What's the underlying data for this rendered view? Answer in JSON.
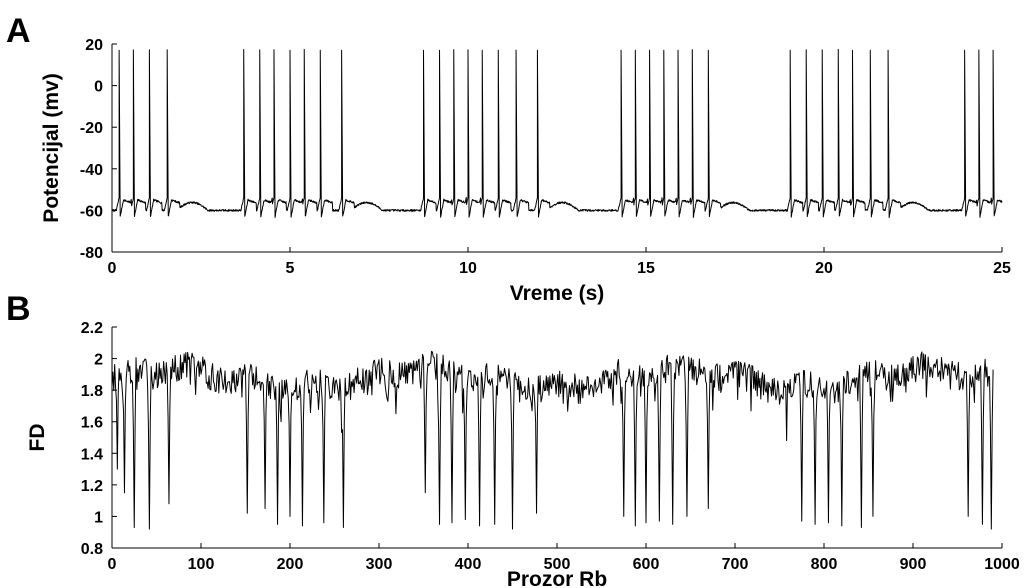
{
  "chart_data": [
    {
      "panel_label": "A",
      "type": "line",
      "xlabel": "Vreme (s)",
      "ylabel": "Potencijal (mv)",
      "xlim": [
        0,
        25
      ],
      "ylim": [
        -80,
        20
      ],
      "xticks": [
        0,
        5,
        10,
        15,
        20,
        25
      ],
      "yticks": [
        20,
        0,
        -20,
        -40,
        -60,
        -80
      ],
      "grid": false,
      "legend": "none",
      "trace_color": "#000000",
      "resting_potential_mv": -60,
      "spike_peak_mv": 17,
      "burst_period_s": 5.35,
      "bursts": [
        {
          "spike_times_s": [
            0.2,
            0.6,
            1.05,
            1.55
          ]
        },
        {
          "spike_times_s": [
            3.7,
            4.15,
            4.55,
            5.0,
            5.4,
            5.85,
            6.45
          ]
        },
        {
          "spike_times_s": [
            8.75,
            9.2,
            9.6,
            10.0,
            10.4,
            10.85,
            11.35,
            11.95
          ]
        },
        {
          "spike_times_s": [
            14.3,
            14.7,
            15.1,
            15.5,
            15.9,
            16.3,
            16.75
          ]
        },
        {
          "spike_times_s": [
            19.05,
            19.5,
            19.95,
            20.4,
            20.8,
            21.3,
            21.8
          ]
        },
        {
          "spike_times_s": [
            23.95,
            24.35,
            24.75
          ]
        }
      ]
    },
    {
      "panel_label": "B",
      "type": "line",
      "xlabel": "Prozor Rb",
      "ylabel": "FD",
      "xlim": [
        0,
        1000
      ],
      "ylim": [
        0.8,
        2.2
      ],
      "xticks": [
        0,
        100,
        200,
        300,
        400,
        500,
        600,
        700,
        800,
        900,
        1000
      ],
      "yticks": [
        2.2,
        2,
        1.8,
        1.6,
        1.4,
        1.2,
        1,
        0.8
      ],
      "grid": false,
      "legend": "none",
      "trace_color": "#000000",
      "n_windows": 990,
      "baseline_fd": 1.87,
      "dips": [
        {
          "x": 6,
          "y": 1.3
        },
        {
          "x": 14,
          "y": 1.15
        },
        {
          "x": 25,
          "y": 0.93
        },
        {
          "x": 42,
          "y": 0.92
        },
        {
          "x": 64,
          "y": 1.08
        },
        {
          "x": 152,
          "y": 1.02
        },
        {
          "x": 172,
          "y": 1.05
        },
        {
          "x": 186,
          "y": 0.95
        },
        {
          "x": 200,
          "y": 1.0
        },
        {
          "x": 214,
          "y": 0.94
        },
        {
          "x": 238,
          "y": 0.96
        },
        {
          "x": 260,
          "y": 0.93
        },
        {
          "x": 352,
          "y": 1.15
        },
        {
          "x": 368,
          "y": 0.95
        },
        {
          "x": 382,
          "y": 0.96
        },
        {
          "x": 397,
          "y": 0.98
        },
        {
          "x": 413,
          "y": 0.94
        },
        {
          "x": 430,
          "y": 0.95
        },
        {
          "x": 450,
          "y": 0.92
        },
        {
          "x": 477,
          "y": 1.02
        },
        {
          "x": 575,
          "y": 1.0
        },
        {
          "x": 588,
          "y": 0.94
        },
        {
          "x": 600,
          "y": 0.96
        },
        {
          "x": 615,
          "y": 0.97
        },
        {
          "x": 630,
          "y": 0.95
        },
        {
          "x": 646,
          "y": 1.0
        },
        {
          "x": 670,
          "y": 1.05
        },
        {
          "x": 758,
          "y": 1.48
        },
        {
          "x": 775,
          "y": 0.97
        },
        {
          "x": 790,
          "y": 0.95
        },
        {
          "x": 805,
          "y": 0.96
        },
        {
          "x": 820,
          "y": 0.94
        },
        {
          "x": 842,
          "y": 0.93
        },
        {
          "x": 855,
          "y": 1.0
        },
        {
          "x": 962,
          "y": 1.0
        },
        {
          "x": 978,
          "y": 0.95
        },
        {
          "x": 988,
          "y": 0.92
        }
      ]
    }
  ]
}
